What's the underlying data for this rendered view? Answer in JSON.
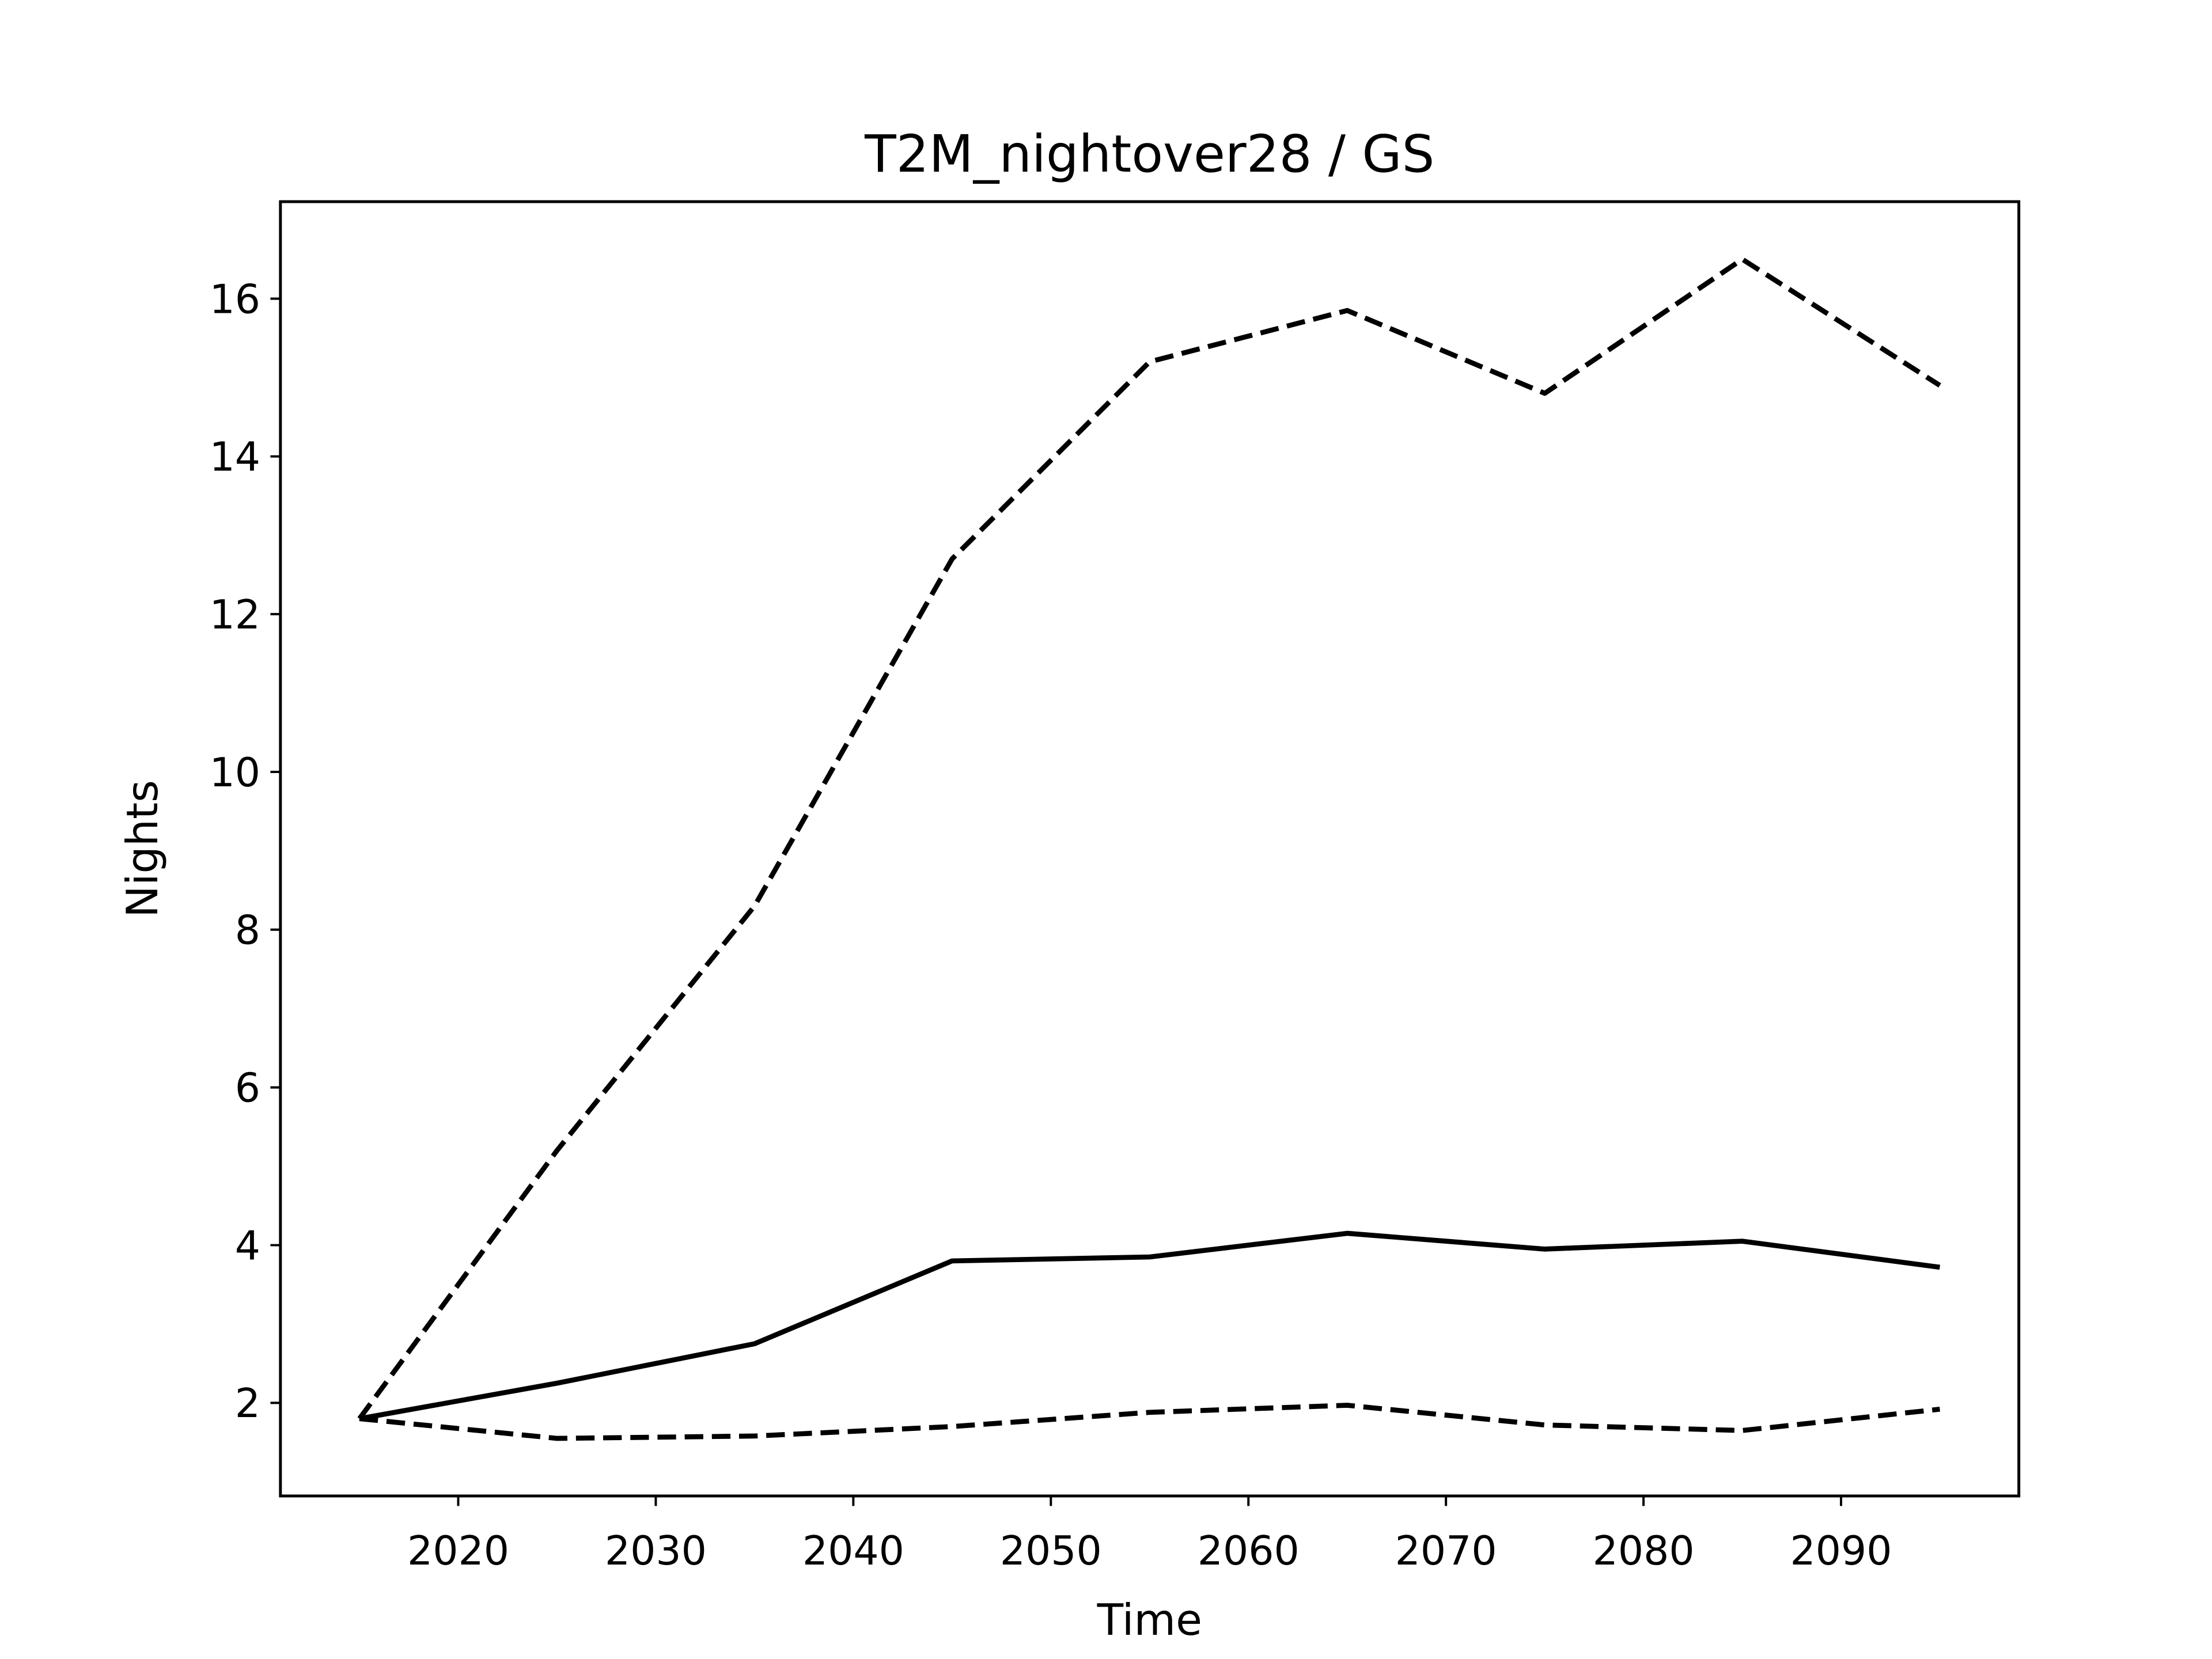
{
  "chart_data": {
    "type": "line",
    "title": "T2M_nightover28 / GS",
    "x_label": "Time",
    "y_label": "Nights",
    "x": [
      2015,
      2025,
      2035,
      2045,
      2055,
      2065,
      2075,
      2085,
      2095
    ],
    "series": [
      {
        "color": "#000000",
        "dash": "dashed",
        "values": [
          1.8,
          5.2,
          8.3,
          12.7,
          15.2,
          15.85,
          14.8,
          16.5,
          14.9
        ]
      },
      {
        "color": "#000000",
        "dash": "solid",
        "values": [
          1.8,
          2.25,
          2.75,
          3.8,
          3.85,
          4.15,
          3.95,
          4.05,
          3.72
        ]
      },
      {
        "color": "#000000",
        "dash": "dashed",
        "values": [
          1.8,
          1.55,
          1.58,
          1.7,
          1.88,
          1.97,
          1.72,
          1.65,
          1.92
        ]
      }
    ],
    "xlim": [
      2011,
      2099
    ],
    "xticks": [
      2020,
      2030,
      2040,
      2050,
      2060,
      2070,
      2080,
      2090
    ],
    "ylim": [
      0.82,
      17.23
    ],
    "yticks": [
      2,
      4,
      6,
      8,
      10,
      12,
      14,
      16
    ],
    "grid": false
  }
}
